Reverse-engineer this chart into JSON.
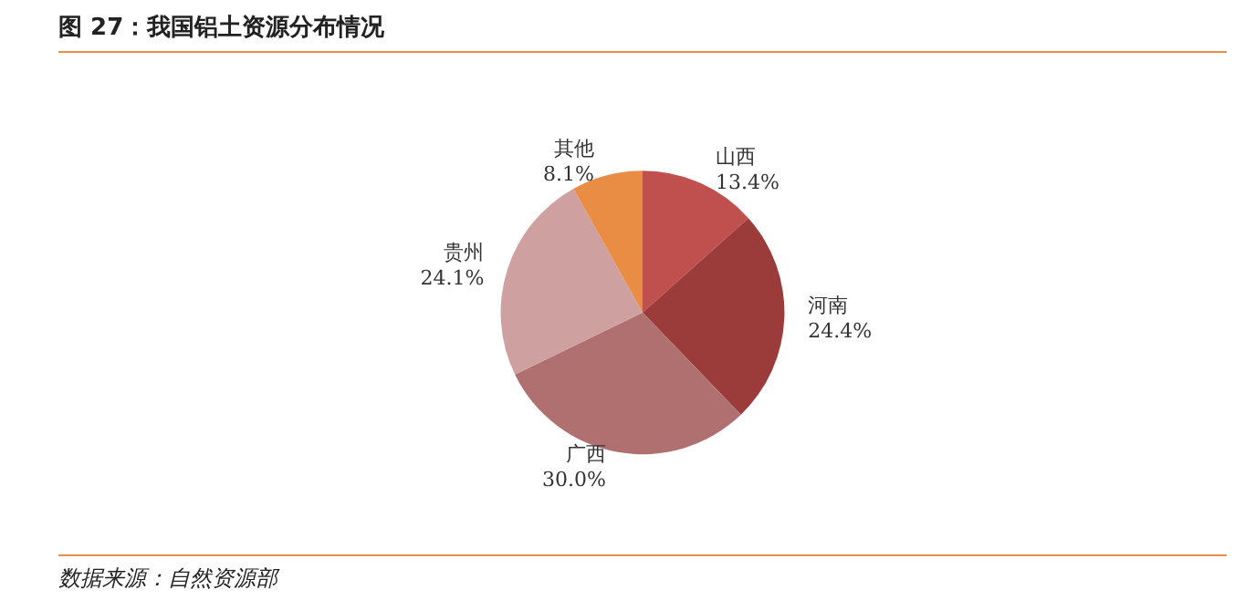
{
  "chart_data": {
    "type": "pie",
    "title": "图 27：我国铝土资源分布情况",
    "categories": [
      "山西",
      "河南",
      "广西",
      "贵州",
      "其他"
    ],
    "values": [
      13.4,
      24.4,
      30.0,
      24.1,
      8.1
    ],
    "colors": [
      "#c0504d",
      "#9b3c3a",
      "#b07070",
      "#cfa0a0",
      "#e98c44"
    ],
    "value_labels": [
      "13.4%",
      "24.4%",
      "30.0%",
      "24.1%",
      "8.1%"
    ],
    "annotations": [
      "数据来源：自然资源部"
    ]
  }
}
